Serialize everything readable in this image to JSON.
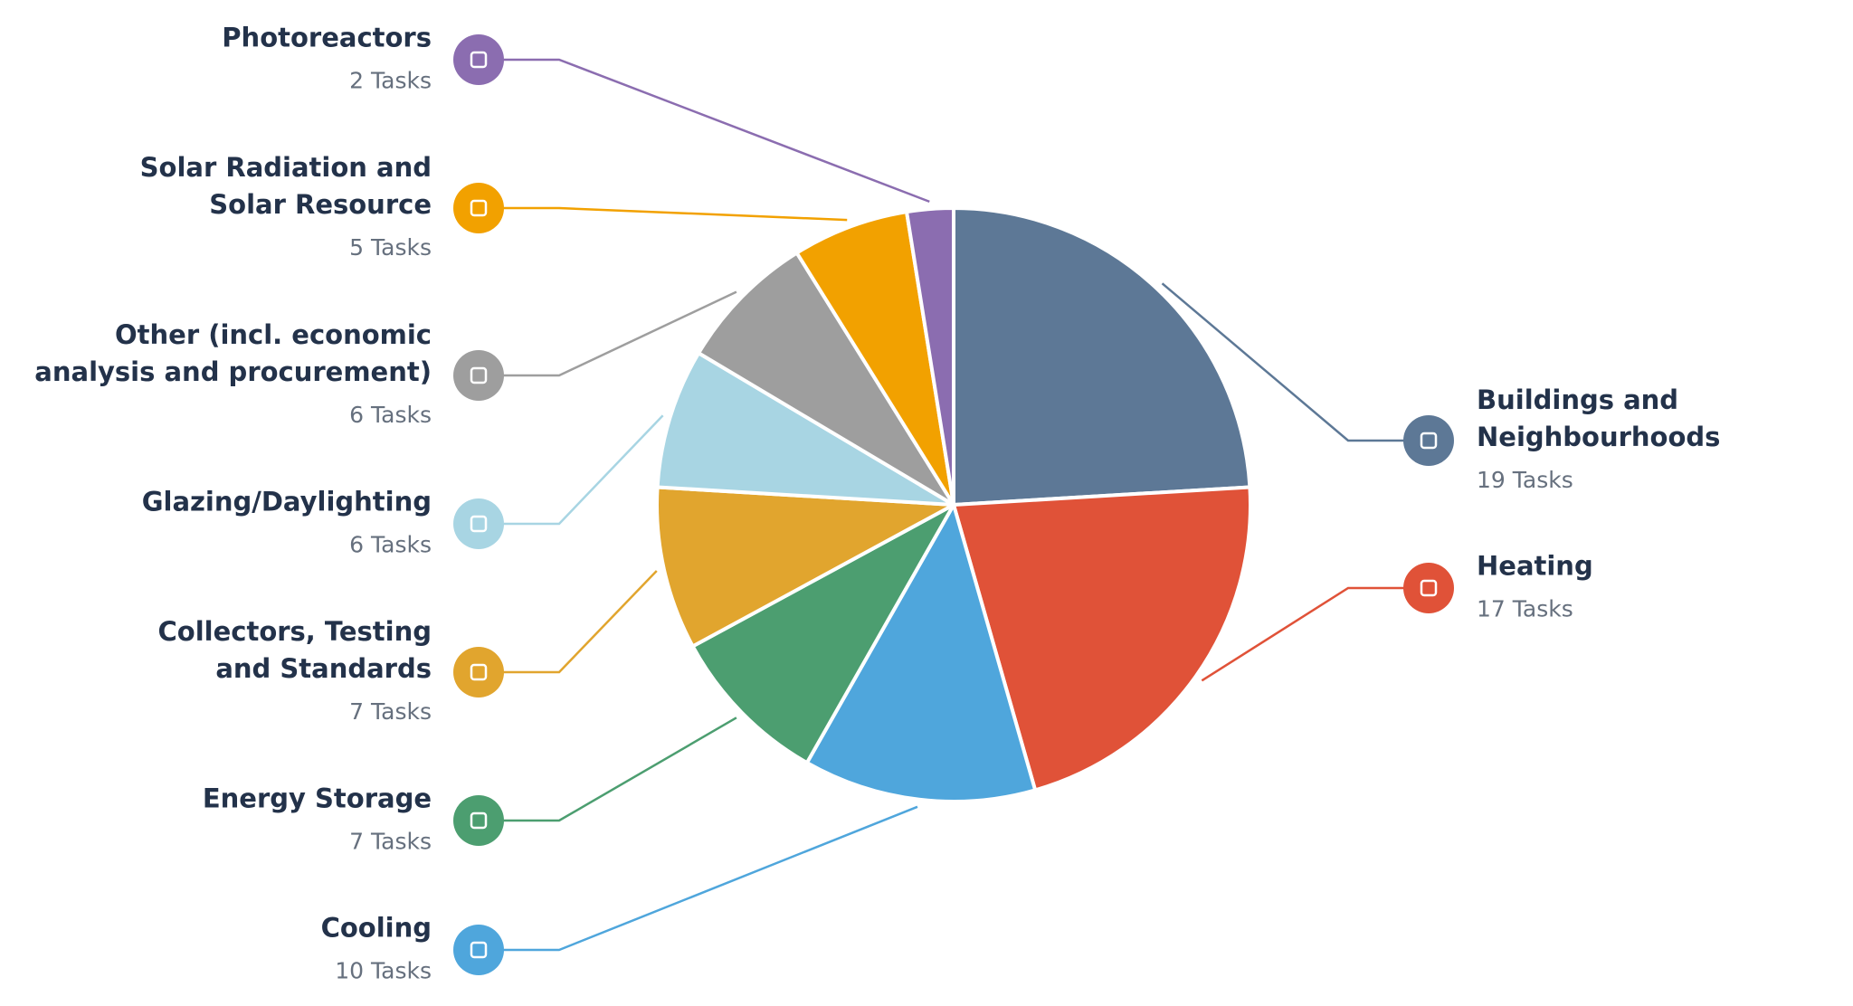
{
  "chart_data": {
    "type": "pie",
    "categories": [
      "Buildings and Neighbourhoods",
      "Heating",
      "Cooling",
      "Energy Storage",
      "Collectors, Testing and Standards",
      "Glazing/Daylighting",
      "Other (incl. economic analysis and procurement)",
      "Solar Radiation and Solar Resource",
      "Photoreactors"
    ],
    "values": [
      19,
      17,
      10,
      7,
      7,
      6,
      6,
      5,
      2
    ],
    "value_labels": [
      "19 Tasks",
      "17 Tasks",
      "10 Tasks",
      "7 Tasks",
      "7 Tasks",
      "6 Tasks",
      "6 Tasks",
      "5 Tasks",
      "2 Tasks"
    ],
    "colors": [
      "#5d7896",
      "#e05238",
      "#4fa6dc",
      "#4c9e70",
      "#e1a52e",
      "#a8d5e3",
      "#9e9e9e",
      "#f2a100",
      "#8b6db0"
    ]
  }
}
